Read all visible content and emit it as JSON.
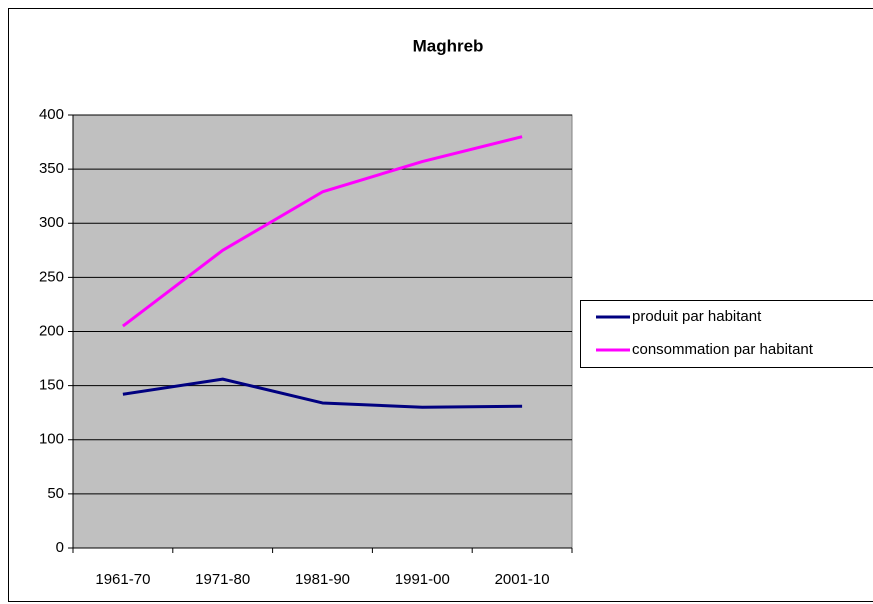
{
  "chart_data": {
    "type": "line",
    "title": "Maghreb",
    "categories": [
      "1961-70",
      "1971-80",
      "1981-90",
      "1991-00",
      "2001-10"
    ],
    "series": [
      {
        "name": "produit par habitant",
        "color": "#000080",
        "values": [
          142,
          156,
          134,
          130,
          131
        ]
      },
      {
        "name": "consommation par habitant",
        "color": "#ff00ff",
        "values": [
          205,
          275,
          329,
          357,
          380
        ]
      }
    ],
    "ylim": [
      0,
      400
    ],
    "yticks": [
      0,
      50,
      100,
      150,
      200,
      250,
      300,
      350,
      400
    ],
    "grid": true,
    "plot_background": "#c0c0c0",
    "legend": "right"
  }
}
